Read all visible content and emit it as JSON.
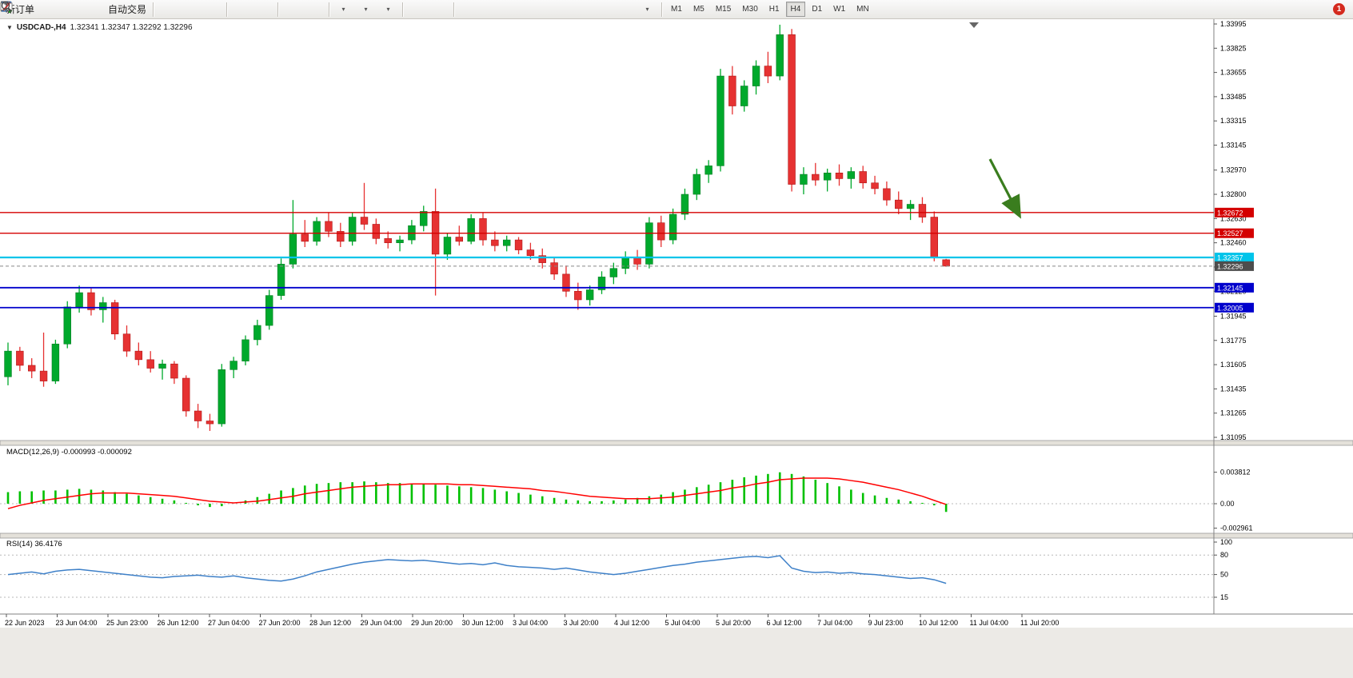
{
  "toolbar": {
    "buttons": [
      {
        "name": "new-order-button",
        "icon": "doc-plus",
        "label": "新订单"
      },
      {
        "name": "charts-profile-icon",
        "icon": "folder-gold"
      },
      {
        "name": "data-window-icon",
        "icon": "grid-blue"
      },
      {
        "name": "navigator-icon",
        "icon": "compass-green"
      },
      {
        "name": "autotrading-button",
        "icon": "play-green",
        "label": "自动交易"
      },
      {
        "sep": true
      },
      {
        "name": "bar-chart-button",
        "icon": "chart-bars"
      },
      {
        "name": "candlestick-chart-button",
        "icon": "chart-candles"
      },
      {
        "name": "line-chart-button",
        "icon": "chart-line"
      },
      {
        "sep": true
      },
      {
        "name": "zoom-in-button",
        "icon": "zoom-in"
      },
      {
        "name": "zoom-out-button",
        "icon": "zoom-out"
      },
      {
        "sep": true
      },
      {
        "name": "tile-windows-button",
        "icon": "tile"
      },
      {
        "name": "cascade-windows-button",
        "icon": "cascade"
      },
      {
        "sep": true
      },
      {
        "name": "new-chart-button",
        "icon": "new-chart",
        "dropdown": true
      },
      {
        "name": "periods-button",
        "icon": "clock",
        "dropdown": true
      },
      {
        "name": "templates-button",
        "icon": "template",
        "dropdown": true
      },
      {
        "sep": true
      },
      {
        "name": "cursor-button",
        "icon": "cursor"
      },
      {
        "name": "crosshair-button",
        "icon": "crosshair"
      },
      {
        "sep": true
      },
      {
        "name": "vertical-line-button",
        "icon": "vline"
      },
      {
        "name": "horizontal-line-button",
        "icon": "hline"
      },
      {
        "name": "trendline-button",
        "icon": "trendline"
      },
      {
        "name": "channel-button",
        "icon": "channel"
      },
      {
        "name": "fibonacci-button",
        "icon": "fibo"
      },
      {
        "name": "grid-button",
        "icon": "grid"
      },
      {
        "name": "text-button",
        "icon": "textA"
      },
      {
        "name": "label-button",
        "icon": "labelT"
      },
      {
        "name": "arrows-button",
        "icon": "arrow-tool",
        "dropdown": true
      },
      {
        "sep": true
      }
    ],
    "timeframes": {
      "items": [
        "M1",
        "M5",
        "M15",
        "M30",
        "H1",
        "H4",
        "D1",
        "W1",
        "MN"
      ],
      "active": "H4"
    },
    "search_icon": "search",
    "notification": {
      "count": "1",
      "color": "#d42a1e"
    }
  },
  "chart": {
    "symbol": "USDCAD-,H4",
    "ohlc_text": "1.32341 1.32347 1.32292 1.32296",
    "collapse_glyph": "▼"
  },
  "price_axis": {
    "labels": [
      "1.33995",
      "1.33825",
      "1.33655",
      "1.33485",
      "1.33315",
      "1.33145",
      "1.32970",
      "1.32800",
      "1.32630",
      "1.32460",
      "1.32290",
      "1.32120",
      "1.31945",
      "1.31775",
      "1.31605",
      "1.31435",
      "1.31265",
      "1.31095"
    ],
    "max": 1.33995,
    "min": 1.31095
  },
  "levels": [
    {
      "price": 1.32672,
      "label": "1.32672",
      "color": "#d40000",
      "width": 1.4
    },
    {
      "price": 1.32527,
      "label": "1.32527",
      "color": "#d40000",
      "width": 1.4
    },
    {
      "price": 1.32357,
      "label": "1.32357",
      "color": "#00c4ea",
      "width": 2.2
    },
    {
      "price": 1.32145,
      "label": "1.32145",
      "color": "#0000cc",
      "width": 1.8
    },
    {
      "price": 1.32005,
      "label": "1.32005",
      "color": "#0000cc",
      "width": 1.8
    }
  ],
  "current_price": {
    "value": 1.32296,
    "label": "1.32296",
    "tag_color": "#4d4d4d"
  },
  "macd_panel": {
    "title": "MACD(12,26,9)",
    "values_text": "-0.000993 -0.000092",
    "axis_labels": [
      {
        "v": 0.003812,
        "t": "0.003812"
      },
      {
        "v": 0.0,
        "t": "0.00"
      },
      {
        "v": -0.002961,
        "t": "-0.002961"
      }
    ]
  },
  "rsi_panel": {
    "title": "RSI(14)",
    "value_text": "36.4176",
    "axis_labels": [
      {
        "v": 100,
        "t": "100"
      },
      {
        "v": 80,
        "t": "80"
      },
      {
        "v": 50,
        "t": "50"
      },
      {
        "v": 15,
        "t": "15"
      }
    ],
    "level_lines": [
      80,
      50,
      15
    ]
  },
  "time_axis": {
    "labels": [
      "22 Jun 2023",
      "23 Jun 04:00",
      "25 Jun 23:00",
      "26 Jun 12:00",
      "27 Jun 04:00",
      "27 Jun 20:00",
      "28 Jun 12:00",
      "29 Jun 04:00",
      "29 Jun 20:00",
      "30 Jun 12:00",
      "3 Jul 04:00",
      "3 Jul 20:00",
      "4 Jul 12:00",
      "5 Jul 04:00",
      "5 Jul 20:00",
      "6 Jul 12:00",
      "7 Jul 04:00",
      "9 Jul 23:00",
      "10 Jul 12:00",
      "11 Jul 04:00",
      "11 Jul 20:00"
    ]
  },
  "annotations": [
    {
      "type": "arrow",
      "color": "#3a7d1e",
      "from": [
        1238,
        199
      ],
      "to": [
        1274,
        268
      ],
      "meaning": "sell-pressure arrow pointing to resistance 1.32672"
    }
  ],
  "colors": {
    "up_candle": "#00a92c",
    "up_stroke": "#067d24",
    "down_candle": "#e63232",
    "down_stroke": "#b01414",
    "macd_hist": "#00c000",
    "macd_signal": "#ff0000",
    "rsi_line": "#3e80c8",
    "axis_text": "#000000",
    "panel_bg": "#ffffff",
    "grid": "#b8b8b8"
  },
  "chart_data": [
    {
      "type": "candlestick",
      "symbol": "USDCAD",
      "timeframe": "H4",
      "ylim": [
        1.31095,
        1.33995
      ],
      "ohlc": [
        [
          1.3152,
          1.3176,
          1.3146,
          1.317
        ],
        [
          1.317,
          1.3173,
          1.3156,
          1.316
        ],
        [
          1.316,
          1.3165,
          1.3151,
          1.3156
        ],
        [
          1.3156,
          1.3183,
          1.3145,
          1.3149
        ],
        [
          1.3149,
          1.3178,
          1.3147,
          1.3175
        ],
        [
          1.3175,
          1.3205,
          1.3172,
          1.3201
        ],
        [
          1.3201,
          1.3216,
          1.3197,
          1.3211
        ],
        [
          1.3211,
          1.3214,
          1.3195,
          1.3199
        ],
        [
          1.3199,
          1.3208,
          1.319,
          1.3204
        ],
        [
          1.3204,
          1.3206,
          1.3178,
          1.3182
        ],
        [
          1.3182,
          1.3188,
          1.3166,
          1.317
        ],
        [
          1.317,
          1.3176,
          1.316,
          1.3164
        ],
        [
          1.3164,
          1.317,
          1.3155,
          1.3158
        ],
        [
          1.3158,
          1.3164,
          1.315,
          1.3161
        ],
        [
          1.3161,
          1.3163,
          1.3147,
          1.3151
        ],
        [
          1.3151,
          1.3153,
          1.3124,
          1.3128
        ],
        [
          1.3128,
          1.3133,
          1.3116,
          1.3121
        ],
        [
          1.3121,
          1.3126,
          1.3114,
          1.3119
        ],
        [
          1.3119,
          1.3161,
          1.3117,
          1.3157
        ],
        [
          1.3157,
          1.3166,
          1.3151,
          1.3163
        ],
        [
          1.3163,
          1.3181,
          1.316,
          1.3178
        ],
        [
          1.3178,
          1.3192,
          1.3174,
          1.3188
        ],
        [
          1.3188,
          1.3213,
          1.3185,
          1.3209
        ],
        [
          1.3209,
          1.3235,
          1.3206,
          1.3231
        ],
        [
          1.3231,
          1.3276,
          1.3228,
          1.3252
        ],
        [
          1.3252,
          1.3262,
          1.3243,
          1.3247
        ],
        [
          1.3247,
          1.3264,
          1.3244,
          1.3261
        ],
        [
          1.3261,
          1.3267,
          1.325,
          1.3254
        ],
        [
          1.3254,
          1.326,
          1.3243,
          1.3247
        ],
        [
          1.3247,
          1.3267,
          1.3244,
          1.3264
        ],
        [
          1.3264,
          1.3288,
          1.3255,
          1.3259
        ],
        [
          1.3259,
          1.3263,
          1.3245,
          1.3249
        ],
        [
          1.3249,
          1.3254,
          1.3242,
          1.3246
        ],
        [
          1.3246,
          1.3251,
          1.324,
          1.3248
        ],
        [
          1.3248,
          1.3262,
          1.3245,
          1.3258
        ],
        [
          1.3258,
          1.3272,
          1.3254,
          1.3268
        ],
        [
          1.3268,
          1.3284,
          1.3209,
          1.3238
        ],
        [
          1.3238,
          1.3253,
          1.3234,
          1.325
        ],
        [
          1.325,
          1.3258,
          1.3244,
          1.3247
        ],
        [
          1.3247,
          1.3266,
          1.3245,
          1.3263
        ],
        [
          1.3263,
          1.3267,
          1.3244,
          1.3248
        ],
        [
          1.3248,
          1.3254,
          1.324,
          1.3244
        ],
        [
          1.3244,
          1.3251,
          1.324,
          1.3248
        ],
        [
          1.3248,
          1.325,
          1.3238,
          1.3241
        ],
        [
          1.3241,
          1.3246,
          1.3234,
          1.3237
        ],
        [
          1.3237,
          1.3242,
          1.3228,
          1.3232
        ],
        [
          1.3232,
          1.3236,
          1.322,
          1.3224
        ],
        [
          1.3224,
          1.323,
          1.3208,
          1.3212
        ],
        [
          1.3212,
          1.3218,
          1.3199,
          1.3206
        ],
        [
          1.3206,
          1.3216,
          1.3202,
          1.3213
        ],
        [
          1.3213,
          1.3226,
          1.321,
          1.3222
        ],
        [
          1.3222,
          1.3232,
          1.3217,
          1.3228
        ],
        [
          1.3228,
          1.324,
          1.3224,
          1.3236
        ],
        [
          1.3236,
          1.3241,
          1.3227,
          1.3231
        ],
        [
          1.3231,
          1.3264,
          1.3228,
          1.326
        ],
        [
          1.326,
          1.3265,
          1.3243,
          1.3248
        ],
        [
          1.3248,
          1.327,
          1.3245,
          1.3266
        ],
        [
          1.3266,
          1.3284,
          1.3262,
          1.328
        ],
        [
          1.328,
          1.3298,
          1.3276,
          1.3294
        ],
        [
          1.3294,
          1.3304,
          1.3288,
          1.33
        ],
        [
          1.33,
          1.3368,
          1.3296,
          1.3363
        ],
        [
          1.3363,
          1.337,
          1.3336,
          1.3342
        ],
        [
          1.3342,
          1.336,
          1.3338,
          1.3356
        ],
        [
          1.3356,
          1.3374,
          1.335,
          1.337
        ],
        [
          1.337,
          1.338,
          1.3358,
          1.3363
        ],
        [
          1.3363,
          1.3399,
          1.336,
          1.3392
        ],
        [
          1.3392,
          1.3396,
          1.3282,
          1.3287
        ],
        [
          1.3287,
          1.3299,
          1.328,
          1.3294
        ],
        [
          1.3294,
          1.3302,
          1.3286,
          1.329
        ],
        [
          1.329,
          1.3298,
          1.3282,
          1.3295
        ],
        [
          1.3295,
          1.3301,
          1.3286,
          1.3291
        ],
        [
          1.3291,
          1.3299,
          1.3284,
          1.3296
        ],
        [
          1.3296,
          1.33,
          1.3284,
          1.3288
        ],
        [
          1.3288,
          1.3293,
          1.328,
          1.3284
        ],
        [
          1.3284,
          1.3289,
          1.3272,
          1.3276
        ],
        [
          1.3276,
          1.3282,
          1.3266,
          1.327
        ],
        [
          1.327,
          1.3276,
          1.3262,
          1.3273
        ],
        [
          1.3273,
          1.3278,
          1.326,
          1.3264
        ],
        [
          1.3264,
          1.3268,
          1.3233,
          1.3236
        ],
        [
          1.32341,
          1.32347,
          1.32292,
          1.32296
        ]
      ]
    },
    {
      "type": "bar",
      "name": "MACD(12,26,9) histogram",
      "ylim": [
        -0.002961,
        0.003812
      ],
      "values": [
        0.0014,
        0.0015,
        0.0015,
        0.0016,
        0.0016,
        0.0017,
        0.0018,
        0.0017,
        0.0016,
        0.0014,
        0.0012,
        0.001,
        0.0008,
        0.0006,
        0.0004,
        0.0001,
        -0.0002,
        -0.0004,
        -0.0003,
        0.0,
        0.0004,
        0.0008,
        0.0012,
        0.0016,
        0.0019,
        0.0022,
        0.0024,
        0.0025,
        0.0026,
        0.0026,
        0.0027,
        0.0026,
        0.0025,
        0.0025,
        0.0024,
        0.0024,
        0.0023,
        0.0022,
        0.0021,
        0.002,
        0.0019,
        0.0017,
        0.0015,
        0.0013,
        0.0011,
        0.0009,
        0.0007,
        0.0005,
        0.0004,
        0.0003,
        0.0003,
        0.0004,
        0.0005,
        0.0007,
        0.0009,
        0.0011,
        0.0014,
        0.0017,
        0.002,
        0.0023,
        0.0026,
        0.0029,
        0.0032,
        0.0034,
        0.0036,
        0.0038,
        0.0036,
        0.0033,
        0.0029,
        0.0025,
        0.0021,
        0.0017,
        0.0013,
        0.001,
        0.0007,
        0.0005,
        0.0003,
        0.0001,
        -0.0002,
        -0.000993
      ],
      "signal": [
        -0.0006,
        -0.0002,
        0.0001,
        0.0004,
        0.0006,
        0.0008,
        0.001,
        0.0012,
        0.0013,
        0.0013,
        0.0013,
        0.0012,
        0.0011,
        0.001,
        0.0009,
        0.0007,
        0.0005,
        0.0003,
        0.0002,
        0.0001,
        0.0002,
        0.0003,
        0.0005,
        0.0007,
        0.0009,
        0.0012,
        0.0014,
        0.0016,
        0.0018,
        0.002,
        0.0021,
        0.0022,
        0.0023,
        0.0023,
        0.0024,
        0.0024,
        0.0024,
        0.0024,
        0.0023,
        0.0023,
        0.0022,
        0.0021,
        0.002,
        0.0019,
        0.0018,
        0.0016,
        0.0015,
        0.0013,
        0.0011,
        0.0009,
        0.0008,
        0.0007,
        0.0006,
        0.0006,
        0.0006,
        0.0007,
        0.0008,
        0.001,
        0.0012,
        0.0014,
        0.0016,
        0.0019,
        0.0021,
        0.0024,
        0.0026,
        0.0029,
        0.003,
        0.0031,
        0.0031,
        0.0031,
        0.003,
        0.0028,
        0.0026,
        0.0023,
        0.002,
        0.0017,
        0.0013,
        0.0009,
        0.0004,
        -9.2e-05
      ]
    },
    {
      "type": "line",
      "name": "RSI(14)",
      "ylim": [
        0,
        100
      ],
      "last_value": 36.4176,
      "values": [
        50,
        52,
        54,
        51,
        55,
        57,
        58,
        56,
        54,
        52,
        50,
        48,
        46,
        45,
        47,
        48,
        49,
        47,
        46,
        48,
        45,
        43,
        41,
        40,
        43,
        48,
        54,
        58,
        62,
        66,
        69,
        71,
        73,
        72,
        71,
        72,
        70,
        68,
        66,
        67,
        65,
        68,
        64,
        62,
        61,
        60,
        58,
        60,
        57,
        54,
        52,
        50,
        52,
        55,
        58,
        61,
        64,
        66,
        69,
        71,
        73,
        75,
        77,
        78,
        76,
        79,
        60,
        55,
        53,
        54,
        52,
        53,
        51,
        50,
        48,
        46,
        44,
        45,
        42,
        36.4
      ]
    }
  ]
}
